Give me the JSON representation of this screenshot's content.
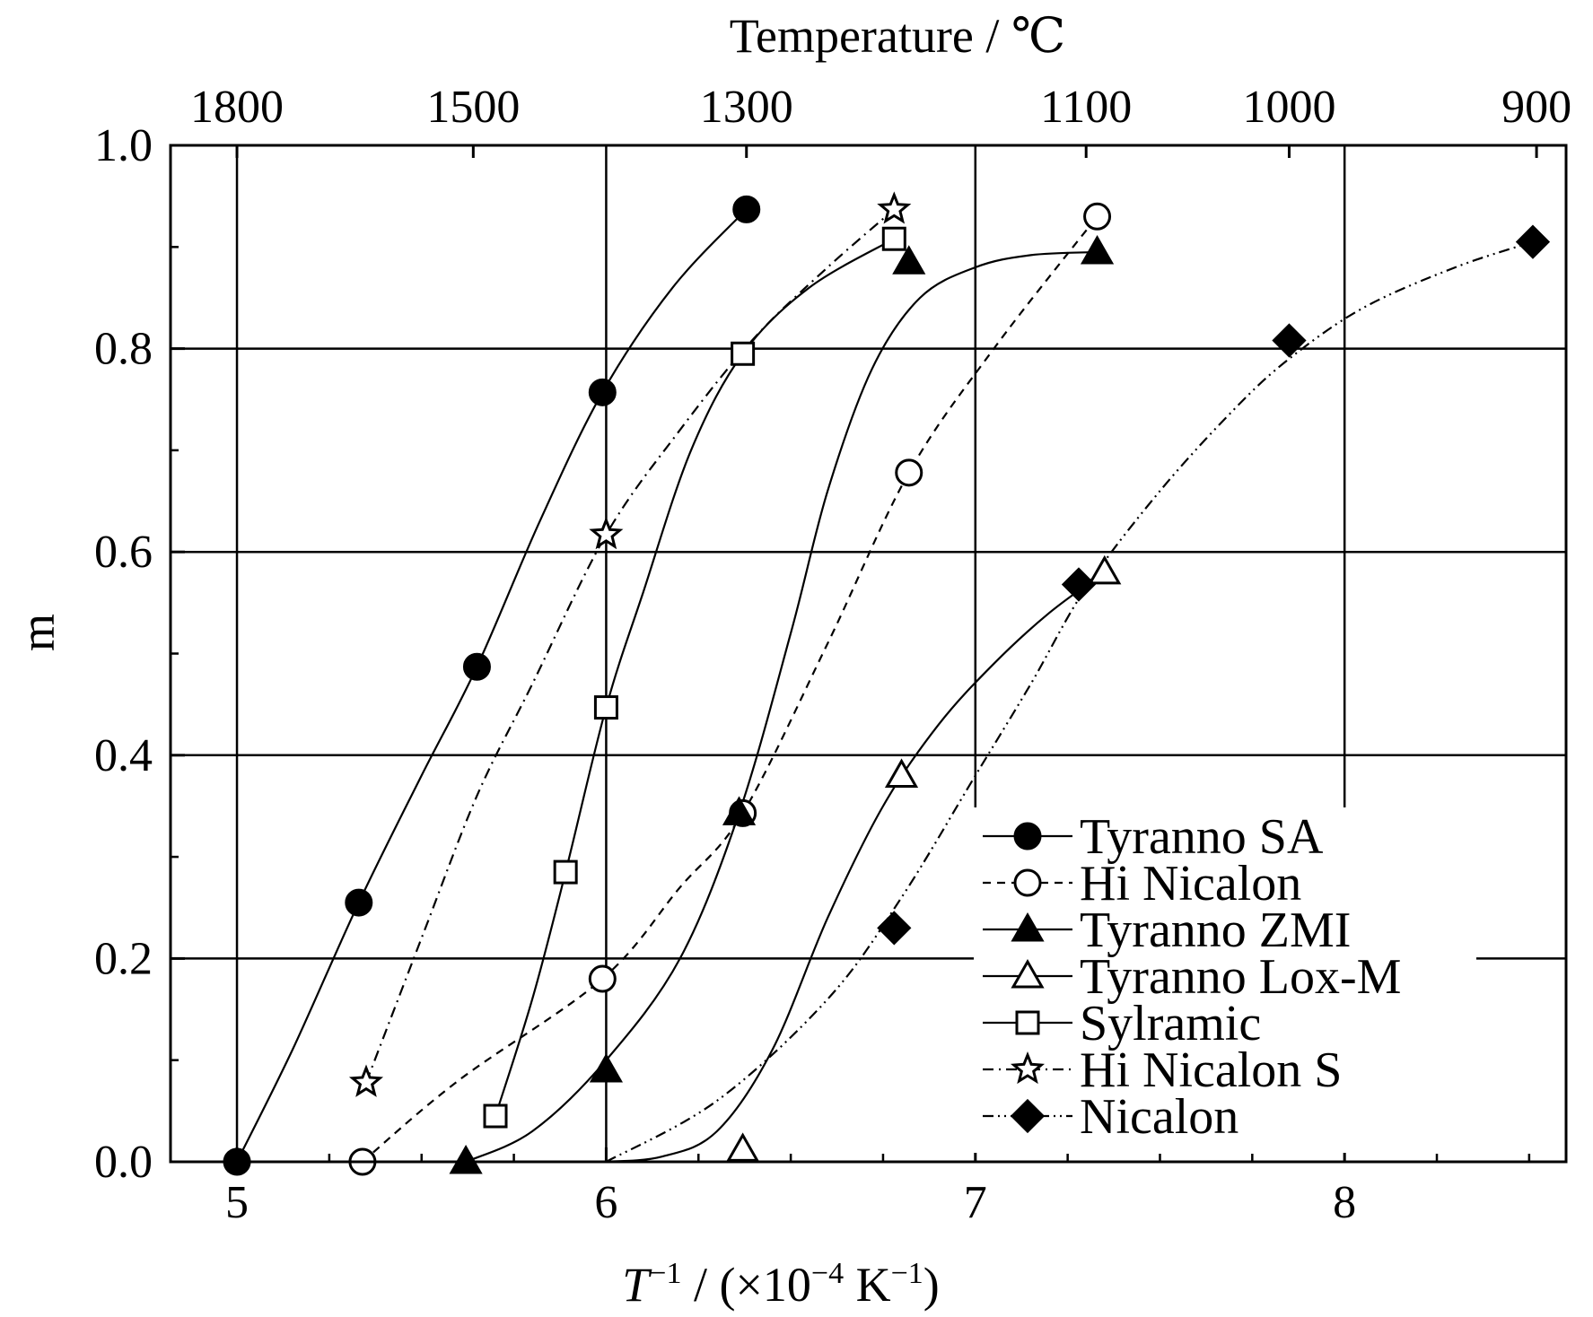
{
  "chart_data": {
    "type": "scatter",
    "title": "",
    "xlabel_italic": "T",
    "xlabel_sup": "−1",
    "xlabel_rest": " / (×10",
    "xlabel_exp": "−4",
    "xlabel_unit": " K",
    "xlabel_unit_exp": "−1",
    "xlabel_close": ")",
    "ylabel": "m",
    "top_axis_label": "Temperature / ℃",
    "xlim": [
      4.82,
      8.6
    ],
    "ylim": [
      0.0,
      1.0
    ],
    "x_ticks": [
      5,
      6,
      7,
      8
    ],
    "x_tick_labels": [
      "5",
      "6",
      "7",
      "8"
    ],
    "y_ticks": [
      0.0,
      0.2,
      0.4,
      0.6,
      0.8,
      1.0
    ],
    "y_tick_labels": [
      "0.0",
      "0.2",
      "0.4",
      "0.6",
      "0.8",
      "1.0"
    ],
    "top_ticks": [
      {
        "label": "1800",
        "x": 5.0
      },
      {
        "label": "1500",
        "x": 5.64
      },
      {
        "label": "1300",
        "x": 6.38
      },
      {
        "label": "1100",
        "x": 7.3
      },
      {
        "label": "1000",
        "x": 7.85
      },
      {
        "label": "900",
        "x": 8.52
      }
    ],
    "grid": {
      "vertical": [
        5,
        6,
        7,
        8
      ],
      "horizontal": [
        0.2,
        0.4,
        0.6,
        0.8
      ]
    },
    "legend_position": "bottom-right",
    "series": [
      {
        "name": "Tyranno SA",
        "marker": "circle",
        "filled": true,
        "line": "solid",
        "points": [
          [
            5.0,
            0.0
          ],
          [
            5.33,
            0.255
          ],
          [
            5.65,
            0.487
          ],
          [
            5.99,
            0.757
          ],
          [
            6.38,
            0.937
          ]
        ],
        "curve": [
          [
            5.0,
            0.0
          ],
          [
            5.15,
            0.11
          ],
          [
            5.33,
            0.255
          ],
          [
            5.5,
            0.38
          ],
          [
            5.65,
            0.487
          ],
          [
            5.82,
            0.63
          ],
          [
            5.99,
            0.757
          ],
          [
            6.18,
            0.86
          ],
          [
            6.38,
            0.937
          ]
        ]
      },
      {
        "name": "Hi Nicalon",
        "marker": "circle",
        "filled": false,
        "line": "dashed",
        "points": [
          [
            5.34,
            0.0
          ],
          [
            5.99,
            0.18
          ],
          [
            6.37,
            0.343
          ],
          [
            6.82,
            0.678
          ],
          [
            7.33,
            0.93
          ]
        ],
        "curve": [
          [
            5.34,
            0.0
          ],
          [
            5.6,
            0.08
          ],
          [
            5.99,
            0.18
          ],
          [
            6.2,
            0.27
          ],
          [
            6.37,
            0.343
          ],
          [
            6.6,
            0.51
          ],
          [
            6.82,
            0.678
          ],
          [
            7.05,
            0.8
          ],
          [
            7.33,
            0.93
          ]
        ]
      },
      {
        "name": "Tyranno ZMI",
        "marker": "triangle",
        "filled": true,
        "line": "solid",
        "points": [
          [
            5.62,
            0.0
          ],
          [
            6.0,
            0.09
          ],
          [
            6.36,
            0.343
          ],
          [
            6.82,
            0.885
          ],
          [
            7.33,
            0.895
          ]
        ],
        "curve": [
          [
            5.62,
            0.0
          ],
          [
            5.8,
            0.03
          ],
          [
            6.0,
            0.1
          ],
          [
            6.2,
            0.2
          ],
          [
            6.36,
            0.343
          ],
          [
            6.5,
            0.52
          ],
          [
            6.6,
            0.66
          ],
          [
            6.72,
            0.78
          ],
          [
            6.85,
            0.85
          ],
          [
            7.0,
            0.88
          ],
          [
            7.15,
            0.892
          ],
          [
            7.33,
            0.895
          ]
        ]
      },
      {
        "name": "Tyranno Lox-M",
        "marker": "triangle",
        "filled": false,
        "line": "solid",
        "points": [
          [
            6.37,
            0.012
          ],
          [
            6.8,
            0.38
          ],
          [
            7.35,
            0.58
          ]
        ],
        "curve": [
          [
            5.99,
            0.0
          ],
          [
            6.15,
            0.005
          ],
          [
            6.3,
            0.03
          ],
          [
            6.45,
            0.11
          ],
          [
            6.6,
            0.24
          ],
          [
            6.75,
            0.35
          ],
          [
            6.9,
            0.43
          ],
          [
            7.05,
            0.49
          ],
          [
            7.2,
            0.54
          ],
          [
            7.35,
            0.58
          ]
        ]
      },
      {
        "name": "Sylramic",
        "marker": "square",
        "filled": false,
        "line": "solid",
        "points": [
          [
            5.7,
            0.045
          ],
          [
            5.89,
            0.285
          ],
          [
            6.0,
            0.447
          ],
          [
            6.37,
            0.795
          ],
          [
            6.78,
            0.908
          ]
        ],
        "curve": [
          [
            5.7,
            0.045
          ],
          [
            5.8,
            0.16
          ],
          [
            5.89,
            0.285
          ],
          [
            6.0,
            0.447
          ],
          [
            6.1,
            0.56
          ],
          [
            6.23,
            0.7
          ],
          [
            6.37,
            0.795
          ],
          [
            6.55,
            0.86
          ],
          [
            6.78,
            0.908
          ]
        ]
      },
      {
        "name": "Hi Nicalon S",
        "marker": "star",
        "filled": false,
        "line": "dashdot",
        "points": [
          [
            5.35,
            0.078
          ],
          [
            6.0,
            0.617
          ],
          [
            6.78,
            0.937
          ]
        ],
        "curve": [
          [
            5.35,
            0.078
          ],
          [
            5.5,
            0.22
          ],
          [
            5.65,
            0.36
          ],
          [
            5.8,
            0.47
          ],
          [
            6.0,
            0.617
          ],
          [
            6.2,
            0.72
          ],
          [
            6.4,
            0.81
          ],
          [
            6.6,
            0.88
          ],
          [
            6.78,
            0.937
          ]
        ]
      },
      {
        "name": "Nicalon",
        "marker": "diamond",
        "filled": true,
        "line": "dashdotdot",
        "points": [
          [
            6.78,
            0.23
          ],
          [
            7.28,
            0.568
          ],
          [
            7.85,
            0.808
          ],
          [
            8.51,
            0.905
          ]
        ],
        "curve": [
          [
            6.0,
            0.0
          ],
          [
            6.3,
            0.06
          ],
          [
            6.6,
            0.16
          ],
          [
            6.8,
            0.26
          ],
          [
            7.0,
            0.38
          ],
          [
            7.15,
            0.47
          ],
          [
            7.3,
            0.565
          ],
          [
            7.5,
            0.66
          ],
          [
            7.7,
            0.74
          ],
          [
            7.85,
            0.79
          ],
          [
            8.05,
            0.84
          ],
          [
            8.3,
            0.88
          ],
          [
            8.51,
            0.905
          ]
        ]
      }
    ]
  }
}
